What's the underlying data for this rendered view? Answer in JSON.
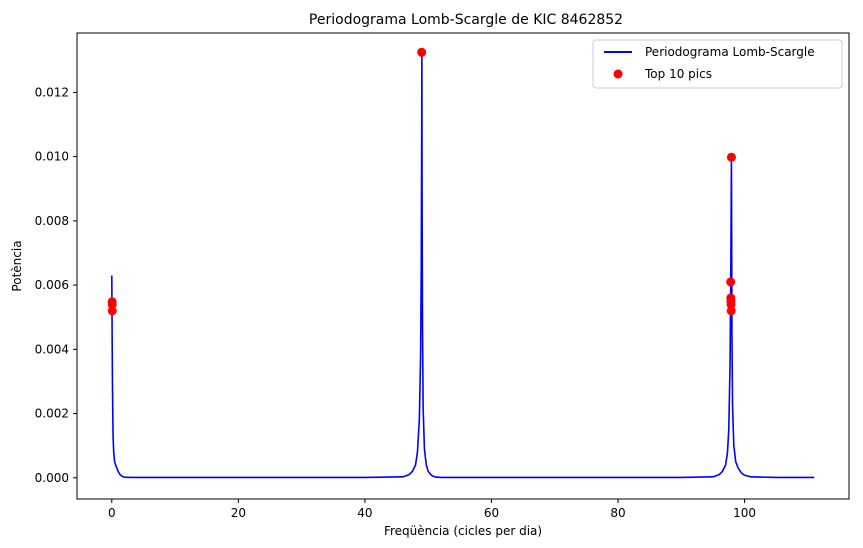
{
  "chart_data": {
    "type": "line",
    "title": "Periodograma Lomb-Scargle de KIC 8462852",
    "xlabel": "Freqüència (cicles per dia)",
    "ylabel": "Potència",
    "xlim": [
      -5.5,
      116.5
    ],
    "ylim": [
      -0.00066,
      0.01385
    ],
    "xticks": [
      0,
      20,
      40,
      60,
      80,
      100
    ],
    "xtick_labels": [
      "0",
      "20",
      "40",
      "60",
      "80",
      "100"
    ],
    "yticks": [
      0.0,
      0.002,
      0.004,
      0.006,
      0.008,
      0.01,
      0.012
    ],
    "ytick_labels": [
      "0.000",
      "0.002",
      "0.004",
      "0.006",
      "0.008",
      "0.010",
      "0.012"
    ],
    "grid": false,
    "legend_position": "top-right",
    "series": [
      {
        "name": "Periodograma Lomb-Scargle",
        "kind": "line",
        "color": "#0000ff",
        "x": [
          0.0,
          0.03,
          0.06,
          0.1,
          0.15,
          0.2,
          0.3,
          0.45,
          0.6,
          0.8,
          1.0,
          1.3,
          1.6,
          2.0,
          3.0,
          5.0,
          10.0,
          20.0,
          30.0,
          40.0,
          46.0,
          47.0,
          47.5,
          48.0,
          48.3,
          48.6,
          48.8,
          48.9,
          48.97,
          49.0,
          49.03,
          49.1,
          49.2,
          49.4,
          49.7,
          50.0,
          50.5,
          51.0,
          52.0,
          60.0,
          70.0,
          80.0,
          90.0,
          95.0,
          96.0,
          96.5,
          97.0,
          97.3,
          97.5,
          97.7,
          97.8,
          97.88,
          97.92,
          97.96,
          98.0,
          98.1,
          98.3,
          98.6,
          99.0,
          99.5,
          100.0,
          101.0,
          105.0,
          111.0
        ],
        "y": [
          0.0063,
          0.0052,
          0.0042,
          0.003,
          0.0021,
          0.0013,
          0.0008,
          0.0005,
          0.0004,
          0.0003,
          0.0002,
          0.0001,
          5e-05,
          2e-05,
          1e-05,
          1e-05,
          1e-05,
          1e-05,
          1e-05,
          1e-05,
          3e-05,
          0.0001,
          0.0002,
          0.0004,
          0.0008,
          0.0018,
          0.0038,
          0.0065,
          0.0105,
          0.0132,
          0.009,
          0.0048,
          0.0022,
          0.0009,
          0.0004,
          0.0002,
          8e-05,
          3e-05,
          1e-05,
          1e-05,
          1e-05,
          1e-05,
          1e-05,
          3e-05,
          0.0001,
          0.0002,
          0.0004,
          0.0008,
          0.0015,
          0.0035,
          0.0058,
          0.0085,
          0.00995,
          0.0075,
          0.0045,
          0.0022,
          0.001,
          0.0005,
          0.0003,
          0.00015,
          8e-05,
          3e-05,
          1e-05,
          1e-05
        ]
      },
      {
        "name": "Top 10 pics",
        "kind": "scatter",
        "color": "#ff0000",
        "x": [
          48.97,
          97.92,
          97.8,
          97.82,
          97.84,
          97.86,
          97.88,
          0.05,
          0.06,
          0.07
        ],
        "y": [
          0.01325,
          0.00998,
          0.0061,
          0.0056,
          0.0055,
          0.0054,
          0.0052,
          0.00548,
          0.0054,
          0.0052
        ]
      }
    ]
  }
}
